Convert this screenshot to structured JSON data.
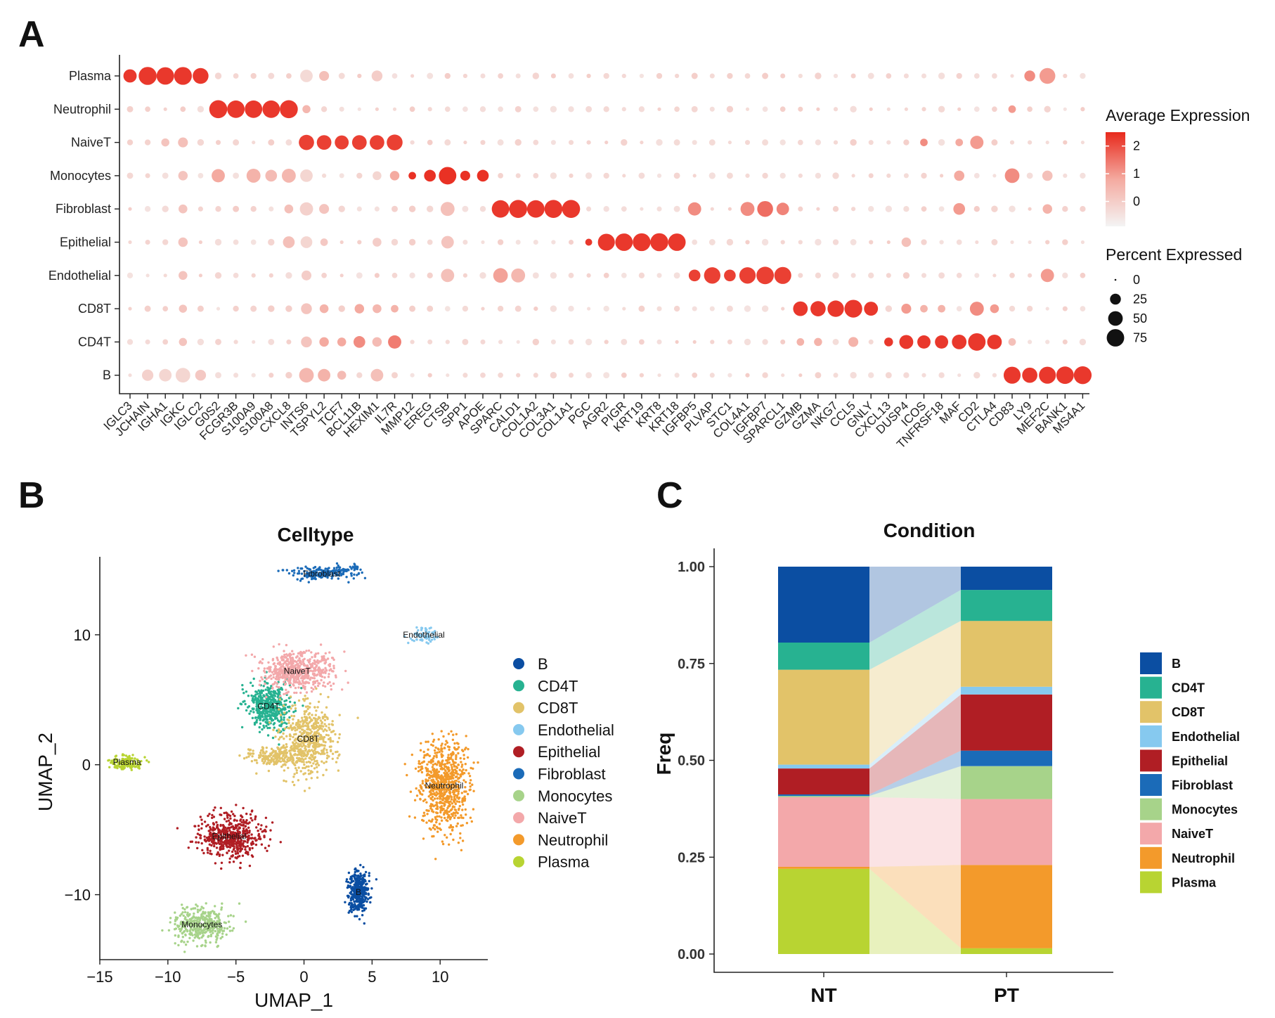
{
  "panels": {
    "a": "A",
    "b": "B",
    "c": "C"
  },
  "chart_data": [
    {
      "type": "dotplot",
      "panel": "A",
      "y_categories": [
        "Plasma",
        "Neutrophil",
        "NaiveT",
        "Monocytes",
        "Fibroblast",
        "Epithelial",
        "Endothelial",
        "CD8T",
        "CD4T",
        "B"
      ],
      "x_categories": [
        "IGLC3",
        "JCHAIN",
        "IGHA1",
        "IGKC",
        "IGLC2",
        "G0S2",
        "FCGR3B",
        "S100A9",
        "S100A8",
        "CXCL8",
        "INTS6",
        "TSPYL2",
        "TCF7",
        "BCL11B",
        "HEXIM1",
        "IL7R",
        "MMP12",
        "EREG",
        "CTSB",
        "SPP1",
        "APOE",
        "SPARC",
        "CALD1",
        "COL1A2",
        "COL3A1",
        "COL1A1",
        "PGC",
        "AGR2",
        "PIGR",
        "KRT19",
        "KRT8",
        "KRT18",
        "IGFBP5",
        "PLVAP",
        "STC1",
        "COL4A1",
        "IGFBP7",
        "SPARCL1",
        "GZMB",
        "GZMA",
        "NKG7",
        "CCL5",
        "GNLY",
        "CXCL13",
        "DUSP4",
        "ICOS",
        "TNFRSF18",
        "MAF",
        "CD2",
        "CTLA4",
        "CD83",
        "LY9",
        "MEF2C",
        "BANK1",
        "MS4A1"
      ],
      "marker_blocks": [
        {
          "cell": "Plasma",
          "genes": [
            "IGLC3",
            "JCHAIN",
            "IGHA1",
            "IGKC",
            "IGLC2"
          ],
          "pct": [
            40,
            80,
            75,
            78,
            60
          ],
          "expr": 2.3
        },
        {
          "cell": "Neutrophil",
          "genes": [
            "G0S2",
            "FCGR3B",
            "S100A9",
            "S100A8",
            "CXCL8"
          ],
          "pct": [
            80,
            75,
            75,
            75,
            80
          ],
          "expr": 2.3
        },
        {
          "cell": "NaiveT",
          "genes": [
            "INTS6",
            "TSPYL2",
            "TCF7",
            "BCL11B",
            "HEXIM1",
            "IL7R"
          ],
          "pct": [
            55,
            50,
            45,
            50,
            50,
            60
          ],
          "expr": 2.2
        },
        {
          "cell": "Monocytes",
          "genes": [
            "MMP12",
            "EREG",
            "CTSB",
            "SPP1",
            "APOE"
          ],
          "pct": [
            10,
            30,
            75,
            20,
            30
          ],
          "expr": 2.4
        },
        {
          "cell": "Fibroblast",
          "genes": [
            "SPARC",
            "CALD1",
            "COL1A2",
            "COL3A1",
            "COL1A1"
          ],
          "pct": [
            75,
            80,
            75,
            80,
            80
          ],
          "expr": 2.3
        },
        {
          "cell": "Epithelial",
          "genes": [
            "PGC",
            "AGR2",
            "PIGR",
            "KRT19",
            "KRT8",
            "KRT18"
          ],
          "pct": [
            8,
            70,
            75,
            78,
            80,
            75
          ],
          "expr": 2.3
        },
        {
          "cell": "Endothelial",
          "genes": [
            "IGFBP5",
            "PLVAP",
            "STC1",
            "COL4A1",
            "IGFBP7",
            "SPARCL1"
          ],
          "pct": [
            30,
            65,
            30,
            65,
            75,
            70
          ],
          "expr": 2.2
        },
        {
          "cell": "CD8T",
          "genes": [
            "GZMB",
            "GZMA",
            "NKG7",
            "CCL5",
            "GNLY"
          ],
          "pct": [
            50,
            55,
            65,
            78,
            45
          ],
          "expr": 2.3
        },
        {
          "cell": "CD4T",
          "genes": [
            "CXCL13",
            "DUSP4",
            "ICOS",
            "TNFRSF18",
            "MAF",
            "CD2",
            "CTLA4"
          ],
          "pct": [
            15,
            45,
            40,
            40,
            50,
            75,
            50
          ],
          "expr": 2.3
        },
        {
          "cell": "B",
          "genes": [
            "CD83",
            "LY9",
            "MEF2C",
            "BANK1",
            "MS4A1"
          ],
          "pct": [
            70,
            55,
            70,
            75,
            78
          ],
          "expr": 2.3
        }
      ],
      "moderate_dots": [
        [
          "Plasma",
          "INTS6",
          35,
          -0.3
        ],
        [
          "Plasma",
          "TSPYL2",
          20,
          0.3
        ],
        [
          "Plasma",
          "HEXIM1",
          25,
          0.0
        ],
        [
          "Plasma",
          "LY9",
          25,
          1.2
        ],
        [
          "Plasma",
          "MEF2C",
          60,
          1.0
        ],
        [
          "Neutrophil",
          "INTS6",
          12,
          0.5
        ],
        [
          "Neutrophil",
          "CD83",
          10,
          1.0
        ],
        [
          "NaiveT",
          "IGKC",
          20,
          0.3
        ],
        [
          "NaiveT",
          "IGHA1",
          12,
          0.2
        ],
        [
          "NaiveT",
          "EREG",
          4,
          0.0
        ],
        [
          "NaiveT",
          "CD2",
          40,
          1.0
        ],
        [
          "NaiveT",
          "ICOS",
          10,
          1.2
        ],
        [
          "NaiveT",
          "MAF",
          10,
          0.8
        ],
        [
          "Monocytes",
          "G0S2",
          40,
          0.8
        ],
        [
          "Monocytes",
          "S100A9",
          45,
          0.6
        ],
        [
          "Monocytes",
          "S100A8",
          30,
          0.4
        ],
        [
          "Monocytes",
          "CXCL8",
          45,
          0.5
        ],
        [
          "Monocytes",
          "INTS6",
          35,
          -0.2
        ],
        [
          "Monocytes",
          "IGKC",
          18,
          0.2
        ],
        [
          "Monocytes",
          "HEXIM1",
          15,
          -0.2
        ],
        [
          "Monocytes",
          "IL7R",
          18,
          0.8
        ],
        [
          "Monocytes",
          "CD83",
          50,
          1.2
        ],
        [
          "Monocytes",
          "MAF",
          22,
          0.8
        ],
        [
          "Monocytes",
          "MEF2C",
          22,
          0.3
        ],
        [
          "Fibroblast",
          "CTSB",
          45,
          0.3
        ],
        [
          "Fibroblast",
          "IGFBP5",
          40,
          1.2
        ],
        [
          "Fibroblast",
          "COL4A1",
          45,
          1.2
        ],
        [
          "Fibroblast",
          "IGFBP7",
          60,
          1.6
        ],
        [
          "Fibroblast",
          "SPARCL1",
          35,
          1.3
        ],
        [
          "Fibroblast",
          "INTS6",
          40,
          -0.1
        ],
        [
          "Fibroblast",
          "TSPYL2",
          20,
          0.2
        ],
        [
          "Fibroblast",
          "MAF",
          30,
          1.0
        ],
        [
          "Fibroblast",
          "MEF2C",
          18,
          0.6
        ],
        [
          "Fibroblast",
          "CXCL8",
          15,
          0.3
        ],
        [
          "Fibroblast",
          "IGKC",
          15,
          0.2
        ],
        [
          "Epithelial",
          "CXCL8",
          30,
          0.3
        ],
        [
          "Epithelial",
          "INTS6",
          30,
          -0.2
        ],
        [
          "Epithelial",
          "CTSB",
          35,
          0.2
        ],
        [
          "Epithelial",
          "IGKC",
          18,
          0.2
        ],
        [
          "Epithelial",
          "DUSP4",
          18,
          0.3
        ],
        [
          "Epithelial",
          "TSPYL2",
          10,
          0.1
        ],
        [
          "Epithelial",
          "HEXIM1",
          15,
          0.0
        ],
        [
          "Endothelial",
          "SPARC",
          50,
          0.9
        ],
        [
          "Endothelial",
          "CALD1",
          45,
          0.5
        ],
        [
          "Endothelial",
          "CTSB",
          40,
          0.3
        ],
        [
          "Endothelial",
          "MEF2C",
          40,
          1.0
        ],
        [
          "Endothelial",
          "IGKC",
          15,
          0.2
        ],
        [
          "Endothelial",
          "INTS6",
          20,
          0.0
        ],
        [
          "CD8T",
          "CD2",
          45,
          1.2
        ],
        [
          "CD8T",
          "DUSP4",
          20,
          1.0
        ],
        [
          "CD8T",
          "INTS6",
          25,
          0.2
        ],
        [
          "CD8T",
          "BCL11B",
          18,
          0.8
        ],
        [
          "CD8T",
          "TSPYL2",
          15,
          0.6
        ],
        [
          "CD8T",
          "HEXIM1",
          15,
          0.5
        ],
        [
          "CD8T",
          "CTLA4",
          15,
          1.0
        ],
        [
          "CD8T",
          "IL7R",
          10,
          0.6
        ],
        [
          "CD8T",
          "IGKC",
          12,
          0.2
        ],
        [
          "CD8T",
          "ICOS",
          10,
          0.6
        ],
        [
          "CD8T",
          "TNFRSF18",
          10,
          0.6
        ],
        [
          "CD4T",
          "BCL11B",
          30,
          1.2
        ],
        [
          "CD4T",
          "IL7R",
          40,
          1.4
        ],
        [
          "CD4T",
          "INTS6",
          25,
          0.2
        ],
        [
          "CD4T",
          "TSPYL2",
          18,
          0.8
        ],
        [
          "CD4T",
          "TCF7",
          15,
          0.8
        ],
        [
          "CD4T",
          "HEXIM1",
          18,
          0.4
        ],
        [
          "CD4T",
          "CCL5",
          20,
          0.6
        ],
        [
          "CD4T",
          "GZMA",
          12,
          0.6
        ],
        [
          "CD4T",
          "GZMB",
          10,
          0.6
        ],
        [
          "CD4T",
          "IGKC",
          12,
          0.2
        ],
        [
          "CD4T",
          "CD83",
          10,
          0.3
        ],
        [
          "B",
          "IGKC",
          50,
          -0.2
        ],
        [
          "B",
          "IGHA1",
          35,
          -0.2
        ],
        [
          "B",
          "JCHAIN",
          28,
          -0.1
        ],
        [
          "B",
          "IGLC2",
          25,
          0.1
        ],
        [
          "B",
          "INTS6",
          50,
          0.5
        ],
        [
          "B",
          "TSPYL2",
          35,
          0.6
        ],
        [
          "B",
          "TCF7",
          15,
          0.4
        ],
        [
          "B",
          "HEXIM1",
          35,
          0.3
        ]
      ],
      "legend_expression": {
        "title": "Average Expression",
        "ticks": [
          "2",
          "1",
          "0"
        ],
        "values": [
          2,
          1,
          0
        ],
        "range": [
          -0.9,
          2.5
        ]
      },
      "legend_percent": {
        "title": "Percent Expressed",
        "ticks": [
          "0",
          "25",
          "50",
          "75"
        ],
        "values": [
          0,
          25,
          50,
          75
        ]
      }
    },
    {
      "type": "scatter",
      "panel": "B",
      "title": "Celltype",
      "xlabel": "UMAP_1",
      "ylabel": "UMAP_2",
      "xlim": [
        -15,
        13.5
      ],
      "ylim": [
        -15,
        16
      ],
      "xticks": [
        "−15",
        "−10",
        "−5",
        "0",
        "5",
        "10"
      ],
      "xtick_values": [
        -15,
        -10,
        -5,
        0,
        5,
        10
      ],
      "yticks": [
        "10",
        "0",
        "−10"
      ],
      "ytick_values": [
        10,
        0,
        -10
      ],
      "clusters": [
        {
          "name": "B",
          "cx": 4.0,
          "cy": -9.8,
          "sx": 0.5,
          "sy": 1.2,
          "n": 340,
          "label": "B",
          "color": "#0b4ea2"
        },
        {
          "name": "CD4T",
          "cx": -2.6,
          "cy": 4.5,
          "sx": 1.1,
          "sy": 1.2,
          "n": 440,
          "label": "CD4T",
          "color": "#27b291"
        },
        {
          "name": "CD8T",
          "cx": 0.3,
          "cy": 2.0,
          "sx": 1.3,
          "sy": 1.8,
          "n": 520,
          "label": "CD8T",
          "color": "#e2c369"
        },
        {
          "name": "CD8T-tail",
          "cx": -2.0,
          "cy": 0.6,
          "sx": 1.4,
          "sy": 0.5,
          "n": 200,
          "label": "",
          "color": "#e2c369"
        },
        {
          "name": "Endothelial",
          "cx": 8.8,
          "cy": 10.0,
          "sx": 0.6,
          "sy": 0.5,
          "n": 70,
          "label": "Endothelial",
          "color": "#86c9ef"
        },
        {
          "name": "Epithelial",
          "cx": -5.5,
          "cy": -5.5,
          "sx": 1.6,
          "sy": 1.1,
          "n": 540,
          "label": "Epithelial",
          "color": "#b01e24"
        },
        {
          "name": "Fibroblast",
          "cx": 1.3,
          "cy": 14.7,
          "sx": 1.5,
          "sy": 0.35,
          "n": 170,
          "label": "Fibroblast",
          "color": "#1b6bb8"
        },
        {
          "name": "Monocytes",
          "cx": -7.5,
          "cy": -12.3,
          "sx": 1.4,
          "sy": 0.9,
          "n": 380,
          "label": "Monocytes",
          "color": "#a7d38a"
        },
        {
          "name": "NaiveT",
          "cx": -0.5,
          "cy": 7.2,
          "sx": 1.6,
          "sy": 1.0,
          "n": 560,
          "label": "NaiveT",
          "color": "#f3a8aa"
        },
        {
          "name": "Neutrophil",
          "cx": 10.3,
          "cy": -1.6,
          "sx": 1.2,
          "sy": 2.3,
          "n": 720,
          "label": "Neutrophil",
          "color": "#f39a2b"
        },
        {
          "name": "Plasma",
          "cx": -13.0,
          "cy": 0.2,
          "sx": 0.8,
          "sy": 0.35,
          "n": 150,
          "label": "Plasma",
          "color": "#b8d432"
        }
      ],
      "legend": [
        "B",
        "CD4T",
        "CD8T",
        "Endothelial",
        "Epithelial",
        "Fibroblast",
        "Monocytes",
        "NaiveT",
        "Neutrophil",
        "Plasma"
      ],
      "colors": {
        "B": "#0b4ea2",
        "CD4T": "#27b291",
        "CD8T": "#e2c369",
        "Endothelial": "#86c9ef",
        "Epithelial": "#b01e24",
        "Fibroblast": "#1b6bb8",
        "Monocytes": "#a7d38a",
        "NaiveT": "#f3a8aa",
        "Neutrophil": "#f39a2b",
        "Plasma": "#b8d432"
      }
    },
    {
      "type": "bar",
      "subtype": "stacked-alluvial",
      "panel": "C",
      "title": "Condition",
      "xlabel": "",
      "ylabel": "Freq",
      "categories": [
        "NT",
        "PT"
      ],
      "yticks": [
        "0.00",
        "0.25",
        "0.50",
        "0.75",
        "1.00"
      ],
      "ytick_values": [
        0,
        0.25,
        0.5,
        0.75,
        1.0
      ],
      "ylim": [
        0,
        1.0
      ],
      "stack_order_bottom_to_top": [
        "Plasma",
        "Neutrophil",
        "NaiveT",
        "Monocytes",
        "Fibroblast",
        "Epithelial",
        "Endothelial",
        "CD8T",
        "CD4T",
        "B"
      ],
      "series": [
        {
          "name": "Plasma",
          "values": [
            0.22,
            0.015
          ]
        },
        {
          "name": "Neutrophil",
          "values": [
            0.005,
            0.215
          ]
        },
        {
          "name": "NaiveT",
          "values": [
            0.18,
            0.17
          ]
        },
        {
          "name": "Monocytes",
          "values": [
            0.003,
            0.085
          ]
        },
        {
          "name": "Fibroblast",
          "values": [
            0.004,
            0.04
          ]
        },
        {
          "name": "Epithelial",
          "values": [
            0.067,
            0.145
          ]
        },
        {
          "name": "Endothelial",
          "values": [
            0.01,
            0.02
          ]
        },
        {
          "name": "CD8T",
          "values": [
            0.245,
            0.17
          ]
        },
        {
          "name": "CD4T",
          "values": [
            0.07,
            0.08
          ]
        },
        {
          "name": "B",
          "values": [
            0.196,
            0.06
          ]
        }
      ],
      "legend": [
        "B",
        "CD4T",
        "CD8T",
        "Endothelial",
        "Epithelial",
        "Fibroblast",
        "Monocytes",
        "NaiveT",
        "Neutrophil",
        "Plasma"
      ],
      "colors": {
        "B": "#0b4ea2",
        "CD4T": "#27b291",
        "CD8T": "#e2c369",
        "Endothelial": "#86c9ef",
        "Epithelial": "#b01e24",
        "Fibroblast": "#1b6bb8",
        "Monocytes": "#a7d38a",
        "NaiveT": "#f3a8aa",
        "Neutrophil": "#f39a2b",
        "Plasma": "#b8d432"
      }
    }
  ]
}
